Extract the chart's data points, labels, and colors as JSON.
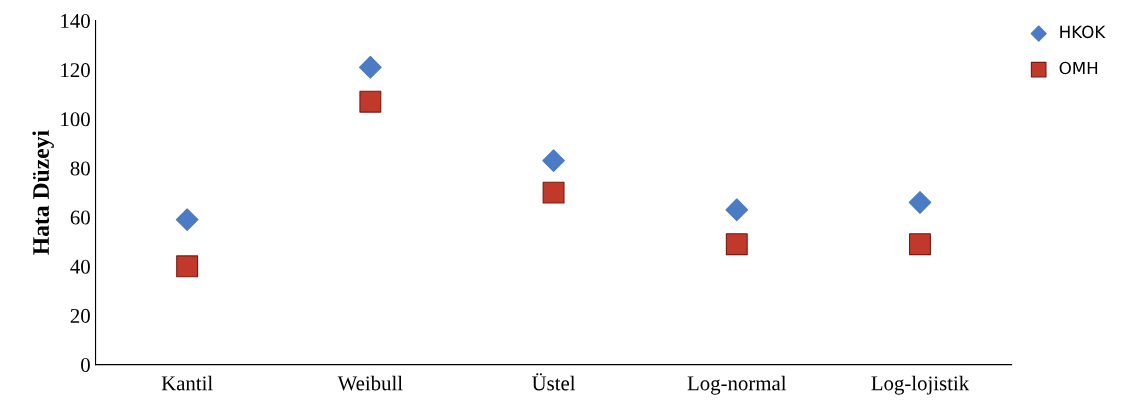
{
  "chart_data": {
    "type": "scatter",
    "ylabel": "Hata Düzeyi",
    "categories": [
      "Kantil",
      "Weibull",
      "Üstel",
      "Log-normal",
      "Log-lojistik"
    ],
    "series": [
      {
        "name": "HKOK",
        "color": "#4a7bc4",
        "marker": "diamond",
        "values": [
          59,
          121,
          83,
          63,
          66
        ]
      },
      {
        "name": "OMH",
        "color": "#c0392b",
        "marker": "square",
        "values": [
          40,
          107,
          70,
          49,
          49
        ]
      }
    ],
    "ylim": [
      0,
      140
    ],
    "yticks": [
      0,
      20,
      40,
      60,
      80,
      100,
      120,
      140
    ],
    "grid": false,
    "legend": "top right"
  }
}
